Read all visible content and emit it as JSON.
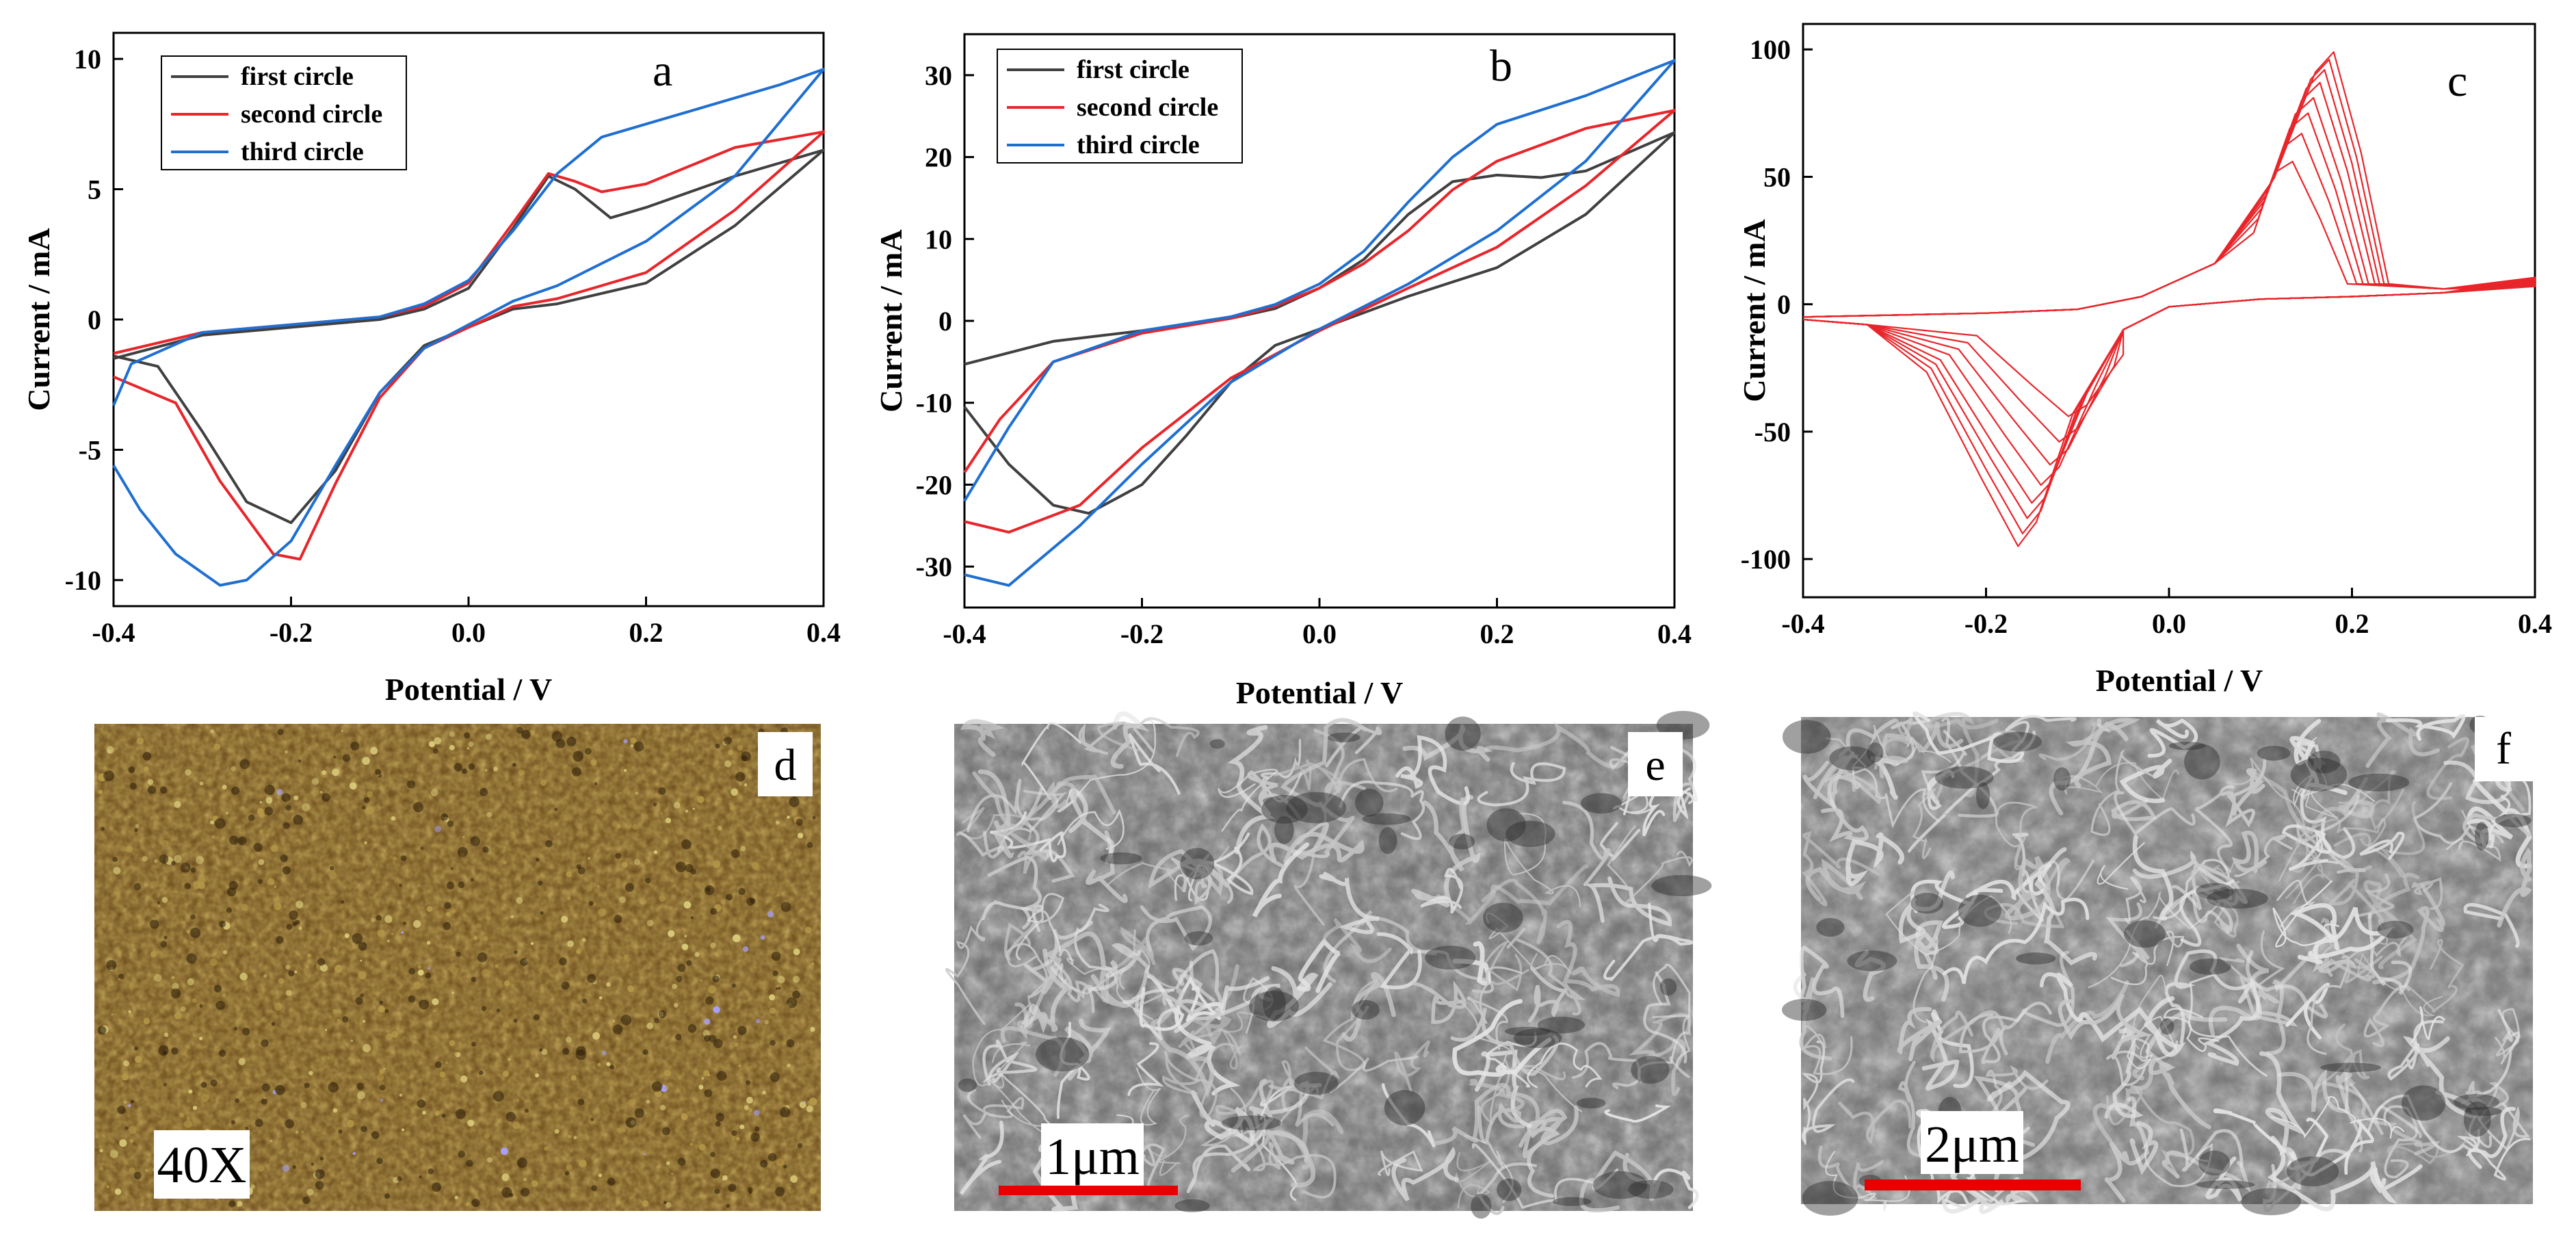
{
  "chart_data": [
    {
      "panel": "a",
      "type": "line",
      "xlabel": "Potential / V",
      "ylabel": "Current / mA",
      "xlim": [
        -0.4,
        0.4
      ],
      "ylim": [
        -11,
        11
      ],
      "xticks": [
        -0.4,
        -0.2,
        0.0,
        0.2,
        0.4
      ],
      "xtick_labels": [
        "-0.4",
        "-0.2",
        "0.0",
        "0.2",
        "0.4"
      ],
      "yticks": [
        -10,
        -5,
        0,
        5,
        10
      ],
      "ytick_labels": [
        "-10",
        "-5",
        "0",
        "5",
        "10"
      ],
      "legend_position": "top-left",
      "series": [
        {
          "name": "first circle",
          "color": "#404040",
          "points": [
            [
              -0.4,
              -1.5
            ],
            [
              -0.3,
              -0.6
            ],
            [
              -0.2,
              -0.3
            ],
            [
              -0.1,
              0.0
            ],
            [
              -0.05,
              0.4
            ],
            [
              0.0,
              1.2
            ],
            [
              0.05,
              3.5
            ],
            [
              0.09,
              5.5
            ],
            [
              0.12,
              5.0
            ],
            [
              0.16,
              3.9
            ],
            [
              0.2,
              4.3
            ],
            [
              0.3,
              5.5
            ],
            [
              0.4,
              6.5
            ],
            [
              0.3,
              3.6
            ],
            [
              0.2,
              1.4
            ],
            [
              0.1,
              0.6
            ],
            [
              0.05,
              0.4
            ],
            [
              0.0,
              -0.3
            ],
            [
              -0.05,
              -1.0
            ],
            [
              -0.1,
              -2.8
            ],
            [
              -0.15,
              -5.8
            ],
            [
              -0.2,
              -7.8
            ],
            [
              -0.25,
              -7.0
            ],
            [
              -0.3,
              -4.3
            ],
            [
              -0.35,
              -1.8
            ],
            [
              -0.4,
              -1.4
            ]
          ]
        },
        {
          "name": "second circle",
          "color": "#e8252a",
          "points": [
            [
              -0.4,
              -1.3
            ],
            [
              -0.3,
              -0.5
            ],
            [
              -0.2,
              -0.2
            ],
            [
              -0.1,
              0.1
            ],
            [
              -0.05,
              0.5
            ],
            [
              0.0,
              1.4
            ],
            [
              0.05,
              3.7
            ],
            [
              0.09,
              5.6
            ],
            [
              0.12,
              5.3
            ],
            [
              0.15,
              4.9
            ],
            [
              0.2,
              5.2
            ],
            [
              0.3,
              6.6
            ],
            [
              0.4,
              7.2
            ],
            [
              0.3,
              4.2
            ],
            [
              0.2,
              1.8
            ],
            [
              0.1,
              0.8
            ],
            [
              0.05,
              0.5
            ],
            [
              0.0,
              -0.3
            ],
            [
              -0.05,
              -1.1
            ],
            [
              -0.1,
              -3.0
            ],
            [
              -0.15,
              -6.3
            ],
            [
              -0.19,
              -9.2
            ],
            [
              -0.22,
              -9.0
            ],
            [
              -0.28,
              -6.2
            ],
            [
              -0.33,
              -3.2
            ],
            [
              -0.4,
              -2.2
            ]
          ]
        },
        {
          "name": "third circle",
          "color": "#1f6fd1",
          "points": [
            [
              -0.4,
              -3.3
            ],
            [
              -0.38,
              -1.7
            ],
            [
              -0.3,
              -0.5
            ],
            [
              -0.2,
              -0.2
            ],
            [
              -0.1,
              0.1
            ],
            [
              -0.05,
              0.6
            ],
            [
              0.0,
              1.5
            ],
            [
              0.05,
              3.4
            ],
            [
              0.1,
              5.6
            ],
            [
              0.15,
              7.0
            ],
            [
              0.2,
              7.5
            ],
            [
              0.25,
              8.0
            ],
            [
              0.3,
              8.5
            ],
            [
              0.35,
              9.0
            ],
            [
              0.4,
              9.6
            ],
            [
              0.3,
              5.5
            ],
            [
              0.2,
              3.0
            ],
            [
              0.1,
              1.3
            ],
            [
              0.05,
              0.7
            ],
            [
              0.0,
              -0.2
            ],
            [
              -0.05,
              -1.1
            ],
            [
              -0.1,
              -2.8
            ],
            [
              -0.15,
              -5.6
            ],
            [
              -0.2,
              -8.5
            ],
            [
              -0.25,
              -10.0
            ],
            [
              -0.28,
              -10.2
            ],
            [
              -0.33,
              -9.0
            ],
            [
              -0.37,
              -7.3
            ],
            [
              -0.4,
              -5.6
            ]
          ]
        }
      ]
    },
    {
      "panel": "b",
      "type": "line",
      "xlabel": "Potential / V",
      "ylabel": "Current / mA",
      "xlim": [
        -0.4,
        0.4
      ],
      "ylim": [
        -35,
        35
      ],
      "xticks": [
        -0.4,
        -0.2,
        0.0,
        0.2,
        0.4
      ],
      "xtick_labels": [
        "-0.4",
        "-0.2",
        "0.0",
        "0.2",
        "0.4"
      ],
      "yticks": [
        -30,
        -20,
        -10,
        0,
        10,
        20,
        30
      ],
      "ytick_labels": [
        "-30",
        "-20",
        "-10",
        "0",
        "10",
        "20",
        "30"
      ],
      "legend_position": "top-left",
      "series": [
        {
          "name": "first circle",
          "color": "#404040",
          "points": [
            [
              -0.4,
              -5.3
            ],
            [
              -0.3,
              -2.5
            ],
            [
              -0.2,
              -1.2
            ],
            [
              -0.1,
              0.3
            ],
            [
              -0.05,
              1.5
            ],
            [
              0.0,
              4.0
            ],
            [
              0.05,
              7.5
            ],
            [
              0.1,
              13.0
            ],
            [
              0.15,
              17.0
            ],
            [
              0.2,
              17.8
            ],
            [
              0.25,
              17.5
            ],
            [
              0.3,
              18.3
            ],
            [
              0.4,
              23.0
            ],
            [
              0.3,
              13.0
            ],
            [
              0.2,
              6.5
            ],
            [
              0.1,
              3.0
            ],
            [
              0.0,
              -1.0
            ],
            [
              -0.05,
              -3.0
            ],
            [
              -0.1,
              -7.5
            ],
            [
              -0.15,
              -14.0
            ],
            [
              -0.2,
              -20.0
            ],
            [
              -0.26,
              -23.5
            ],
            [
              -0.3,
              -22.5
            ],
            [
              -0.35,
              -17.5
            ],
            [
              -0.4,
              -10.5
            ]
          ]
        },
        {
          "name": "second circle",
          "color": "#e8252a",
          "points": [
            [
              -0.4,
              -18.5
            ],
            [
              -0.36,
              -12.0
            ],
            [
              -0.3,
              -5.0
            ],
            [
              -0.2,
              -1.5
            ],
            [
              -0.1,
              0.3
            ],
            [
              -0.05,
              1.8
            ],
            [
              0.0,
              4.0
            ],
            [
              0.05,
              7.0
            ],
            [
              0.1,
              11.0
            ],
            [
              0.15,
              16.0
            ],
            [
              0.2,
              19.5
            ],
            [
              0.3,
              23.5
            ],
            [
              0.4,
              25.7
            ],
            [
              0.3,
              16.5
            ],
            [
              0.2,
              9.0
            ],
            [
              0.1,
              4.0
            ],
            [
              0.0,
              -1.2
            ],
            [
              -0.1,
              -7.0
            ],
            [
              -0.2,
              -15.5
            ],
            [
              -0.27,
              -22.5
            ],
            [
              -0.35,
              -25.8
            ],
            [
              -0.4,
              -24.5
            ]
          ]
        },
        {
          "name": "third circle",
          "color": "#1f6fd1",
          "points": [
            [
              -0.4,
              -22.0
            ],
            [
              -0.35,
              -13.0
            ],
            [
              -0.3,
              -5.0
            ],
            [
              -0.2,
              -1.2
            ],
            [
              -0.1,
              0.5
            ],
            [
              -0.05,
              2.0
            ],
            [
              0.0,
              4.5
            ],
            [
              0.05,
              8.5
            ],
            [
              0.1,
              14.5
            ],
            [
              0.15,
              20.0
            ],
            [
              0.2,
              24.0
            ],
            [
              0.3,
              27.5
            ],
            [
              0.4,
              31.8
            ],
            [
              0.3,
              19.5
            ],
            [
              0.2,
              11.0
            ],
            [
              0.1,
              4.5
            ],
            [
              0.0,
              -1.0
            ],
            [
              -0.1,
              -7.5
            ],
            [
              -0.2,
              -17.5
            ],
            [
              -0.27,
              -25.0
            ],
            [
              -0.35,
              -32.3
            ],
            [
              -0.4,
              -31.0
            ]
          ]
        }
      ]
    },
    {
      "panel": "c",
      "type": "line",
      "xlabel": "Potential / V",
      "ylabel": "Current / mA",
      "xlim": [
        -0.4,
        0.4
      ],
      "ylim": [
        -115,
        110
      ],
      "xticks": [
        -0.4,
        -0.2,
        0.0,
        0.2,
        0.4
      ],
      "xtick_labels": [
        "-0.4",
        "-0.2",
        "0.0",
        "0.2",
        "0.4"
      ],
      "yticks": [
        -100,
        -50,
        0,
        50,
        100
      ],
      "ytick_labels": [
        "-100",
        "-50",
        "0",
        "50",
        "100"
      ],
      "series_color": "#e8252a",
      "cycles": [
        {
          "anodic_peak_potential": 0.135,
          "anodic_peak_current": 56,
          "cathodic_peak_potential": -0.11,
          "cathodic_peak_current": -44
        },
        {
          "anodic_peak_potential": 0.145,
          "anodic_peak_current": 67,
          "cathodic_peak_potential": -0.12,
          "cathodic_peak_current": -54
        },
        {
          "anodic_peak_potential": 0.152,
          "anodic_peak_current": 75,
          "cathodic_peak_potential": -0.13,
          "cathodic_peak_current": -63
        },
        {
          "anodic_peak_potential": 0.158,
          "anodic_peak_current": 81,
          "cathodic_peak_potential": -0.14,
          "cathodic_peak_current": -71
        },
        {
          "anodic_peak_potential": 0.165,
          "anodic_peak_current": 87,
          "cathodic_peak_potential": -0.15,
          "cathodic_peak_current": -78
        },
        {
          "anodic_peak_potential": 0.17,
          "anodic_peak_current": 92,
          "cathodic_peak_potential": -0.155,
          "cathodic_peak_current": -84
        },
        {
          "anodic_peak_potential": 0.175,
          "anodic_peak_current": 96,
          "cathodic_peak_potential": -0.16,
          "cathodic_peak_current": -90
        },
        {
          "anodic_peak_potential": 0.18,
          "anodic_peak_current": 99,
          "cathodic_peak_potential": -0.165,
          "cathodic_peak_current": -95
        }
      ]
    }
  ],
  "images": {
    "d": {
      "letter": "d",
      "label": "40X",
      "base_color": "#6a4a1c"
    },
    "e": {
      "letter": "e",
      "scale_label": "1μm",
      "base_color": "#6e6e6e"
    },
    "f": {
      "letter": "f",
      "scale_label": "2μm",
      "base_color": "#757575"
    }
  },
  "scale_bar_color": "#e60000"
}
